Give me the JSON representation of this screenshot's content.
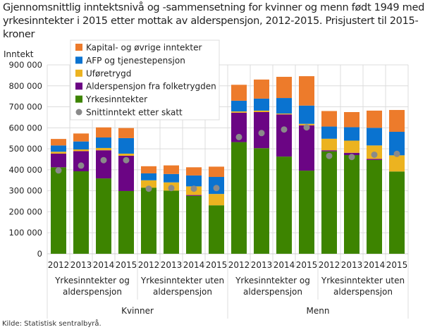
{
  "chart_data": {
    "type": "bar",
    "stacked": true,
    "title": "Gjennomsnittlig inntektsnivå og -sammensetning for kvinner og menn født 1949 med yrkesinntekter i 2015 etter mottak av alderspensjon, 2012-2015.  Prisjustert til 2015-kroner",
    "ylabel": "Inntekt",
    "xlabel": "",
    "ylim": [
      0,
      900000
    ],
    "yticks": [
      "0",
      "100 000",
      "200 000",
      "300 000",
      "400 000",
      "500 000",
      "600 000",
      "700 000",
      "800 000",
      "900 000"
    ],
    "grid": true,
    "legend_position": "top-left",
    "categories": [
      "2012",
      "2013",
      "2014",
      "2015",
      "2012",
      "2013",
      "2014",
      "2015",
      "2012",
      "2013",
      "2014",
      "2015",
      "2012",
      "2013",
      "2014",
      "2015"
    ],
    "subgroups": [
      {
        "label_lines": [
          "Yrkesinntekter og",
          "alderspensjon"
        ]
      },
      {
        "label_lines": [
          "Yrkesinntekter uten",
          "alderspensjon"
        ]
      },
      {
        "label_lines": [
          "Yrkesinntekter og",
          "alderspensjon"
        ]
      },
      {
        "label_lines": [
          "Yrkesinntekter uten",
          "alderspensjon"
        ]
      }
    ],
    "groups": [
      "Kvinner",
      "Menn"
    ],
    "series": [
      {
        "name": "Yrkesinntekter",
        "color": "#3d8400",
        "values": [
          412000,
          393000,
          359000,
          299000,
          315000,
          301000,
          276000,
          231000,
          532000,
          503000,
          463000,
          396000,
          488000,
          470000,
          447000,
          392000
        ]
      },
      {
        "name": "Alderspensjon fra folketrygden",
        "color": "#6b0584",
        "values": [
          65000,
          96000,
          134000,
          168000,
          0,
          0,
          4000,
          0,
          140000,
          172000,
          201000,
          216000,
          5000,
          11000,
          5000,
          0
        ]
      },
      {
        "name": "Uføretrygd",
        "color": "#ecb320",
        "values": [
          9000,
          8000,
          11000,
          10000,
          35000,
          39000,
          41000,
          54000,
          6000,
          7000,
          4000,
          7000,
          55000,
          58000,
          64000,
          77000
        ]
      },
      {
        "name": "AFP og tjenestepensjon",
        "color": "#0a73d0",
        "values": [
          30000,
          38000,
          50000,
          74000,
          33000,
          40000,
          52000,
          81000,
          51000,
          57000,
          74000,
          87000,
          58000,
          64000,
          84000,
          112000
        ]
      },
      {
        "name": "Kapital- og øvrige inntekter",
        "color": "#ed7b2b",
        "values": [
          31000,
          38000,
          48000,
          48000,
          34000,
          41000,
          39000,
          49000,
          76000,
          91000,
          101000,
          140000,
          74000,
          72000,
          82000,
          104000
        ]
      }
    ],
    "points": {
      "name": "Snittinntekt etter skatt",
      "color": "#8a8a8a",
      "values": [
        397000,
        420000,
        446000,
        446000,
        310000,
        313000,
        310000,
        313000,
        556000,
        575000,
        592000,
        602000,
        466000,
        461000,
        472000,
        476000
      ]
    },
    "legend_order": [
      "Kapital- og øvrige inntekter",
      "AFP og tjenestepensjon",
      "Uføretrygd",
      "Alderspensjon fra folketrygden",
      "Yrkesinntekter",
      "Snittinntekt etter skatt"
    ]
  },
  "source": "Kilde: Statistisk sentralbyrå."
}
